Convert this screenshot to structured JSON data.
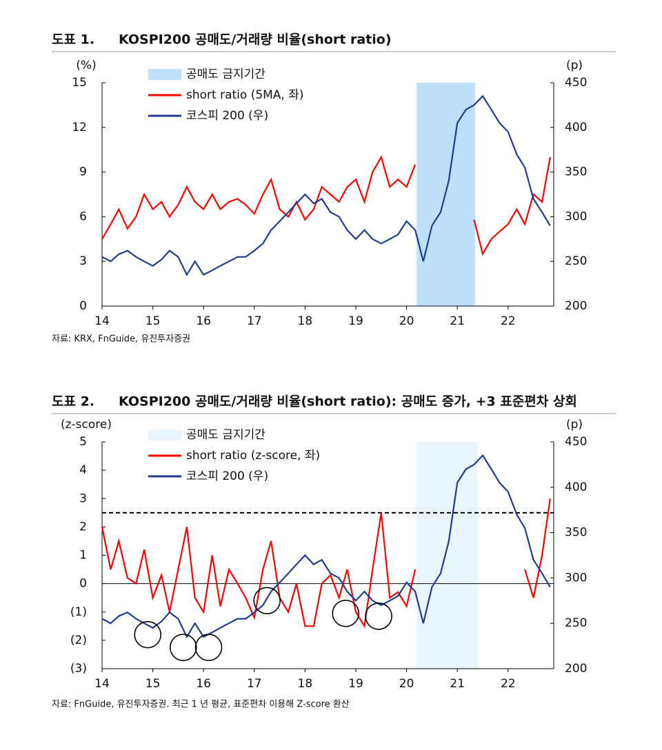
{
  "chart_data": [
    {
      "type": "line",
      "label": "도표 1.",
      "title": "KOSPI200 공매도/거래량 비율(short ratio)",
      "source": "자료: KRX, FnGuide, 유진투자증권",
      "y_label": "(%)",
      "y2_label": "(p)",
      "x": [
        14.0,
        14.17,
        14.33,
        14.5,
        14.67,
        14.83,
        15.0,
        15.17,
        15.33,
        15.5,
        15.67,
        15.83,
        16.0,
        16.17,
        16.33,
        16.5,
        16.67,
        16.83,
        17.0,
        17.17,
        17.33,
        17.5,
        17.67,
        17.83,
        18.0,
        18.17,
        18.33,
        18.5,
        18.67,
        18.83,
        19.0,
        19.17,
        19.33,
        19.5,
        19.67,
        19.83,
        20.0,
        20.17,
        20.33,
        20.5,
        20.67,
        20.83,
        21.0,
        21.17,
        21.33,
        21.5,
        21.67,
        21.83,
        22.0,
        22.17,
        22.33,
        22.5,
        22.67,
        22.83
      ],
      "xlim": [
        14,
        22.9
      ],
      "xticks": [
        14,
        15,
        16,
        17,
        18,
        19,
        20,
        21,
        22
      ],
      "ylim": [
        0,
        15
      ],
      "yticks": [
        0,
        3,
        6,
        9,
        12,
        15
      ],
      "y2lim": [
        200,
        450
      ],
      "y2ticks": [
        200,
        250,
        300,
        350,
        400,
        450
      ],
      "shade": {
        "name": "공매도 금지기간",
        "range": [
          20.2,
          21.35
        ],
        "color": "#bfe0fb"
      },
      "series": [
        {
          "name": "short ratio (5MA, 좌)",
          "color": "#ff0000",
          "values": [
            4.5,
            5.5,
            6.5,
            5.2,
            6.0,
            7.5,
            6.5,
            7.0,
            6.0,
            6.8,
            8.0,
            7.0,
            6.5,
            7.5,
            6.5,
            7.0,
            7.2,
            6.8,
            6.2,
            7.5,
            8.5,
            6.5,
            6.0,
            7.0,
            5.8,
            6.5,
            8.0,
            7.5,
            7.0,
            8.0,
            8.5,
            7.0,
            9.0,
            10.0,
            8.0,
            8.5,
            8.0,
            9.5,
            null,
            null,
            null,
            null,
            null,
            null,
            5.8,
            3.5,
            4.5,
            5.0,
            5.5,
            6.5,
            5.5,
            7.5,
            7.0,
            10.0
          ]
        },
        {
          "name": "코스피 200 (우)",
          "color": "#1f3a93",
          "axis": "y2",
          "values": [
            255,
            250,
            258,
            262,
            255,
            250,
            245,
            252,
            262,
            255,
            235,
            250,
            235,
            240,
            245,
            250,
            255,
            255,
            262,
            270,
            285,
            295,
            305,
            315,
            325,
            315,
            320,
            305,
            300,
            285,
            275,
            285,
            275,
            270,
            275,
            280,
            295,
            285,
            250,
            290,
            305,
            340,
            405,
            420,
            425,
            435,
            420,
            405,
            395,
            370,
            355,
            320,
            305,
            290
          ]
        }
      ]
    },
    {
      "type": "line",
      "label": "도표 2.",
      "title": "KOSPI200 공매도/거래량 비율(short ratio): 공매도 증가, +3 표준편차 상회",
      "source": "자료: FnGuide, 유진투자증권. 최근 1 년 평균, 표준편차 이용해 Z-score 환산",
      "y_label": "(z-score)",
      "y2_label": "(p)",
      "x": [
        14.0,
        14.17,
        14.33,
        14.5,
        14.67,
        14.83,
        15.0,
        15.17,
        15.33,
        15.5,
        15.67,
        15.83,
        16.0,
        16.17,
        16.33,
        16.5,
        16.67,
        16.83,
        17.0,
        17.17,
        17.33,
        17.5,
        17.67,
        17.83,
        18.0,
        18.17,
        18.33,
        18.5,
        18.67,
        18.83,
        19.0,
        19.17,
        19.33,
        19.5,
        19.67,
        19.83,
        20.0,
        20.17,
        20.33,
        20.5,
        20.67,
        20.83,
        21.0,
        21.17,
        21.33,
        21.5,
        21.67,
        21.83,
        22.0,
        22.17,
        22.33,
        22.5,
        22.67,
        22.83
      ],
      "xlim": [
        14,
        22.9
      ],
      "xticks": [
        14,
        15,
        16,
        17,
        18,
        19,
        20,
        21,
        22
      ],
      "ylim": [
        -3,
        5
      ],
      "yticks": [
        {
          "value": -3,
          "label": "(3)"
        },
        {
          "value": -2,
          "label": "(2)"
        },
        {
          "value": -1,
          "label": "(1)"
        },
        0,
        1,
        2,
        3,
        4,
        5
      ],
      "y2lim": [
        200,
        450
      ],
      "y2ticks": [
        200,
        250,
        300,
        350,
        400,
        450
      ],
      "shade": {
        "name": "공매도 금지기간",
        "range": [
          20.2,
          21.4
        ],
        "color": "#eaf4fd"
      },
      "threshold": 2.5,
      "circled_points": [
        {
          "x": 14.9,
          "y": -1.8
        },
        {
          "x": 15.6,
          "y": -2.25
        },
        {
          "x": 16.1,
          "y": -2.25
        },
        {
          "x": 17.25,
          "y": -0.6
        },
        {
          "x": 18.8,
          "y": -1.05
        },
        {
          "x": 19.45,
          "y": -1.15
        }
      ],
      "series": [
        {
          "name": "short ratio (z-score, 좌)",
          "color": "#ff0000",
          "values": [
            2.0,
            0.5,
            1.5,
            0.2,
            0.0,
            1.2,
            -0.5,
            0.3,
            -1.0,
            0.5,
            2.0,
            -0.5,
            -1.0,
            1.0,
            -0.8,
            0.5,
            0.0,
            -0.5,
            -1.2,
            0.5,
            1.5,
            -0.5,
            -1.0,
            0.0,
            -1.5,
            -1.5,
            0.0,
            0.3,
            -0.5,
            0.5,
            -1.0,
            -1.5,
            0.5,
            2.5,
            -0.5,
            -0.3,
            -0.8,
            0.5,
            null,
            null,
            null,
            null,
            null,
            null,
            null,
            null,
            null,
            null,
            null,
            null,
            0.5,
            -0.5,
            1.0,
            3.0
          ]
        },
        {
          "name": "코스피 200 (우)",
          "color": "#1f3a93",
          "axis": "y2",
          "values": [
            255,
            250,
            258,
            262,
            255,
            250,
            245,
            252,
            262,
            255,
            235,
            250,
            235,
            240,
            245,
            250,
            255,
            255,
            262,
            270,
            285,
            295,
            305,
            315,
            325,
            315,
            320,
            305,
            300,
            285,
            275,
            285,
            275,
            270,
            275,
            280,
            295,
            285,
            250,
            290,
            305,
            340,
            405,
            420,
            425,
            435,
            420,
            405,
            395,
            370,
            355,
            320,
            305,
            290
          ]
        }
      ]
    }
  ]
}
